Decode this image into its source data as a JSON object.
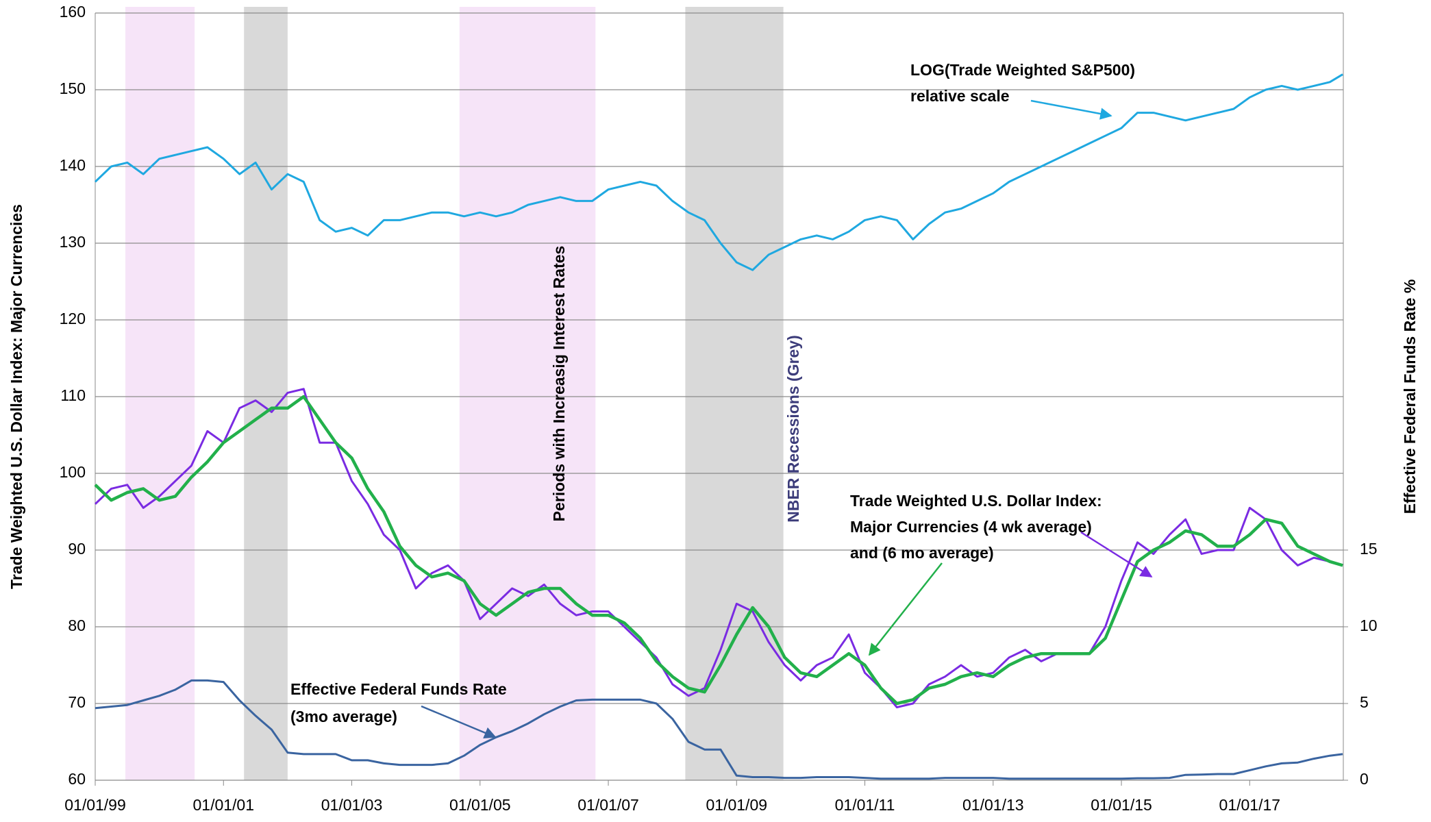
{
  "chart_data": {
    "type": "line",
    "y_label": "Trade Weighted U.S. Dollar Index:  Major Currencies",
    "y2_label": "Effective Federal Funds Rate %",
    "x": [
      1999,
      1999.25,
      1999.5,
      1999.75,
      2000,
      2000.25,
      2000.5,
      2000.75,
      2001,
      2001.25,
      2001.5,
      2001.75,
      2002,
      2002.25,
      2002.5,
      2002.75,
      2003,
      2003.25,
      2003.5,
      2003.75,
      2004,
      2004.25,
      2004.5,
      2004.75,
      2005,
      2005.25,
      2005.5,
      2005.75,
      2006,
      2006.25,
      2006.5,
      2006.75,
      2007,
      2007.25,
      2007.5,
      2007.75,
      2008,
      2008.25,
      2008.5,
      2008.75,
      2009,
      2009.25,
      2009.5,
      2009.75,
      2010,
      2010.25,
      2010.5,
      2010.75,
      2011,
      2011.25,
      2011.5,
      2011.75,
      2012,
      2012.25,
      2012.5,
      2012.75,
      2013,
      2013.25,
      2013.5,
      2013.75,
      2014,
      2014.25,
      2014.5,
      2014.75,
      2015,
      2015.25,
      2015.5,
      2015.75,
      2016,
      2016.25,
      2016.5,
      2016.75,
      2017,
      2017.25,
      2017.5,
      2017.75,
      2018,
      2018.25,
      2018.45
    ],
    "xlim": [
      1999,
      2018.46
    ],
    "xticks": [
      {
        "value": 1999,
        "label": "01/01/99"
      },
      {
        "value": 2001,
        "label": "01/01/01"
      },
      {
        "value": 2003,
        "label": "01/01/03"
      },
      {
        "value": 2005,
        "label": "01/01/05"
      },
      {
        "value": 2007,
        "label": "01/01/07"
      },
      {
        "value": 2009,
        "label": "01/01/09"
      },
      {
        "value": 2011,
        "label": "01/01/11"
      },
      {
        "value": 2013,
        "label": "01/01/13"
      },
      {
        "value": 2015,
        "label": "01/01/15"
      },
      {
        "value": 2017,
        "label": "01/01/17"
      }
    ],
    "ylim": [
      60,
      160
    ],
    "yticks": [
      60,
      70,
      80,
      90,
      100,
      110,
      120,
      130,
      140,
      150,
      160
    ],
    "y2lim": [
      0,
      50
    ],
    "y2ticks": [
      0,
      5,
      10,
      15
    ],
    "grid": true,
    "shaded_periods": [
      {
        "start": 1999.47,
        "end": 2000.55,
        "color": "#f6e4f8"
      },
      {
        "start": 2004.68,
        "end": 2006.8,
        "color": "#f6e4f8"
      },
      {
        "start": 2001.32,
        "end": 2002.0,
        "color": "#d9d9d9"
      },
      {
        "start": 2008.2,
        "end": 2009.73,
        "color": "#d9d9d9"
      }
    ],
    "series": [
      {
        "color": "#1fa8e0",
        "values": [
          138,
          140,
          140.5,
          139,
          141,
          141.5,
          142,
          142.5,
          141,
          139,
          140.5,
          137,
          139,
          138,
          133,
          131.5,
          132,
          131,
          133,
          133,
          133.5,
          134,
          134,
          133.5,
          134,
          133.5,
          134,
          135,
          135.5,
          136,
          135.5,
          135.5,
          137,
          137.5,
          138,
          137.5,
          135.5,
          134,
          133,
          130,
          127.5,
          126.5,
          128.5,
          129.5,
          130.5,
          131,
          130.5,
          131.5,
          133,
          133.5,
          133,
          130.5,
          132.5,
          134,
          134.5,
          135.5,
          136.5,
          138,
          139,
          140,
          141,
          142,
          143,
          144,
          145,
          147,
          147,
          146.5,
          146,
          146.5,
          147,
          147.5,
          149,
          150,
          150.5,
          150,
          150.5,
          151,
          152
        ]
      },
      {
        "color": "#7a2be2",
        "values": [
          96,
          98,
          98.5,
          95.5,
          97,
          99,
          101,
          105.5,
          104,
          108.5,
          109.5,
          108,
          110.5,
          111,
          104,
          104,
          99,
          96,
          92,
          90,
          85,
          87,
          88,
          86,
          81,
          83,
          85,
          84,
          85.5,
          83,
          81.5,
          82,
          82,
          80,
          78,
          76,
          72.5,
          71,
          72,
          77,
          83,
          82,
          78,
          75,
          73,
          75,
          76,
          79,
          74,
          72,
          69.5,
          70,
          72.5,
          73.5,
          75,
          73.5,
          74,
          76,
          77,
          75.5,
          76.5,
          76.5,
          76.5,
          80,
          86,
          91,
          89.5,
          92,
          94,
          89.5,
          90,
          90,
          95.5,
          94,
          90,
          88,
          89,
          88.5,
          88
        ]
      },
      {
        "color": "#22b04b",
        "values": [
          98.5,
          96.5,
          97.5,
          98,
          96.5,
          97,
          99.5,
          101.5,
          104,
          105.5,
          107,
          108.5,
          108.5,
          110,
          107,
          104,
          102,
          98,
          95,
          90.5,
          88,
          86.5,
          87,
          86,
          83,
          81.5,
          83,
          84.5,
          85,
          85,
          83,
          81.5,
          81.5,
          80.5,
          78.5,
          75.5,
          73.5,
          72,
          71.5,
          75,
          79,
          82.5,
          80,
          76,
          74,
          73.5,
          75,
          76.5,
          75,
          72,
          70,
          70.5,
          72,
          72.5,
          73.5,
          74,
          73.5,
          75,
          76,
          76.5,
          76.5,
          76.5,
          76.5,
          78.5,
          83.5,
          88.5,
          90,
          91,
          92.5,
          92,
          90.5,
          90.5,
          92,
          94,
          93.5,
          90.5,
          89.5,
          88.5,
          88
        ]
      },
      {
        "color": "#3a64a0",
        "axis": "y2",
        "values": [
          4.7,
          4.8,
          4.9,
          5.2,
          5.5,
          5.9,
          6.5,
          6.5,
          6.4,
          5.2,
          4.2,
          3.3,
          1.8,
          1.7,
          1.7,
          1.7,
          1.3,
          1.3,
          1.1,
          1.0,
          1.0,
          1.0,
          1.1,
          1.6,
          2.3,
          2.8,
          3.2,
          3.7,
          4.3,
          4.8,
          5.2,
          5.25,
          5.25,
          5.25,
          5.25,
          5.0,
          4.0,
          2.5,
          2.0,
          2.0,
          0.3,
          0.2,
          0.2,
          0.15,
          0.15,
          0.2,
          0.2,
          0.2,
          0.15,
          0.1,
          0.1,
          0.1,
          0.1,
          0.15,
          0.15,
          0.15,
          0.15,
          0.1,
          0.1,
          0.1,
          0.1,
          0.1,
          0.1,
          0.1,
          0.1,
          0.13,
          0.13,
          0.15,
          0.35,
          0.37,
          0.4,
          0.4,
          0.65,
          0.9,
          1.1,
          1.15,
          1.4,
          1.6,
          1.7
        ]
      }
    ],
    "annotations": [
      {
        "lines": [
          "LOG(Trade Weighted S&P500)",
          "relative scale"
        ]
      },
      {
        "lines": [
          "Trade Weighted U.S. Dollar Index:",
          "Major Currencies (4 wk average)",
          "and (6 mo average)"
        ]
      },
      {
        "lines": [
          "Effective Federal Funds Rate",
          "(3mo average)"
        ]
      },
      {
        "lines": [
          "Periods with Increasig Interest Rates"
        ]
      },
      {
        "lines": [
          "NBER Recessions (Grey)"
        ]
      }
    ]
  }
}
